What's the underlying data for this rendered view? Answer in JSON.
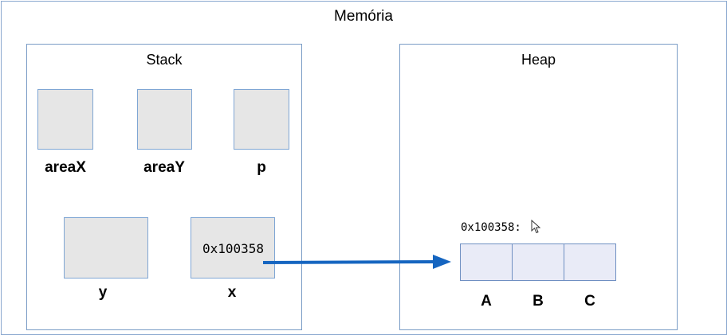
{
  "memory": {
    "title": "Memória"
  },
  "stack": {
    "title": "Stack",
    "vars": {
      "areaX": {
        "label": "areaX"
      },
      "areaY": {
        "label": "areaY"
      },
      "p": {
        "label": "p"
      },
      "y": {
        "label": "y"
      },
      "x": {
        "label": "x",
        "value": "0x100358"
      }
    }
  },
  "heap": {
    "title": "Heap",
    "address": "0x100358:",
    "cells": [
      "A",
      "B",
      "C"
    ]
  },
  "colors": {
    "border": "#7a9cc6",
    "cell_fill": "#e6e6e6",
    "heap_cell_fill": "#e9ebf7",
    "arrow": "#1565c0"
  },
  "icons": {
    "cursor": "mouse-pointer-icon"
  }
}
